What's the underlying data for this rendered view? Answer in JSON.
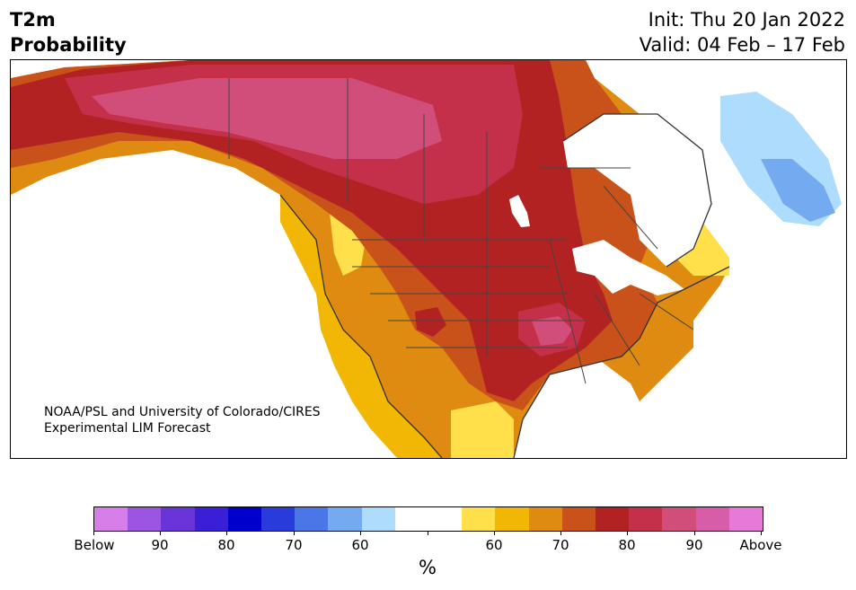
{
  "header": {
    "variable": "T2m",
    "kind": "Probability",
    "init": "Init: Thu 20 Jan 2022",
    "valid": "Valid: 04 Feb – 17 Feb"
  },
  "credit": {
    "line1": "NOAA/PSL and University of Colorado/CIRES",
    "line2": "Experimental LIM Forecast"
  },
  "colorbar": {
    "unit": "%",
    "labels": [
      "Below",
      "90",
      "80",
      "70",
      "60",
      "60",
      "70",
      "80",
      "90",
      "Above"
    ],
    "colors": {
      "below_extreme": "#d77ee8",
      "below_95": "#9b55e0",
      "below_90": "#6a35d8",
      "below_85": "#3a1fd6",
      "below_80": "#0000cc",
      "below_75": "#2a3bdc",
      "below_70": "#4a76e8",
      "below_65": "#74aaf0",
      "below_60": "#aedcfc",
      "neutral": "#ffffff",
      "above_60": "#ffe04a",
      "above_65": "#f2b705",
      "above_70": "#df8a10",
      "above_75": "#c8521a",
      "above_80": "#b22222",
      "above_85": "#c4304a",
      "above_90": "#d24e7a",
      "above_95": "#d85da8",
      "above_extreme": "#e77ad8"
    }
  }
}
